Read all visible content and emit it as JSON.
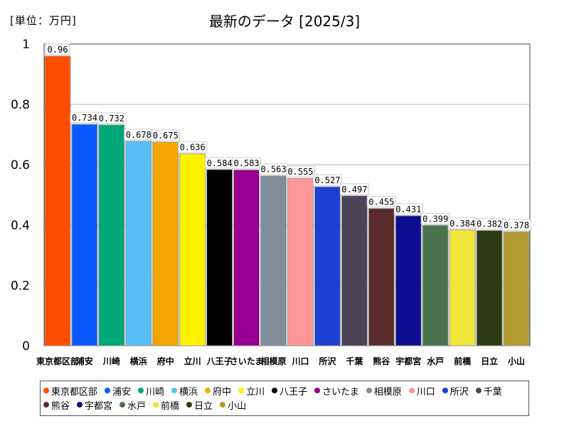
{
  "header": {
    "unit": "[単位：万円]",
    "title": "最新のデータ [2025/3]"
  },
  "chart_data": {
    "type": "bar",
    "title": "最新のデータ [2025/3]",
    "unit_label": "[単位：万円]",
    "ylim": [
      0,
      1
    ],
    "yticks": [
      0,
      0.2,
      0.4,
      0.6,
      0.8,
      1
    ],
    "ytick_labels": [
      "0",
      "0.2",
      "0.4",
      "0.6",
      "0.8",
      "1"
    ],
    "grid": true,
    "legend_position": "bottom",
    "categories": [
      "東京都区部",
      "浦安",
      "川崎",
      "横浜",
      "府中",
      "立川",
      "八王子",
      "さいたま",
      "相模原",
      "川口",
      "所沢",
      "千葉",
      "熊谷",
      "宇都宮",
      "水戸",
      "前橋",
      "日立",
      "小山"
    ],
    "values": [
      0.96,
      0.734,
      0.732,
      0.678,
      0.675,
      0.636,
      0.584,
      0.583,
      0.563,
      0.555,
      0.527,
      0.497,
      0.455,
      0.431,
      0.399,
      0.384,
      0.382,
      0.378
    ],
    "value_labels": [
      "0.96",
      "0.734",
      "0.732",
      "0.678",
      "0.675",
      "0.636",
      "0.584",
      "0.583",
      "0.563",
      "0.555",
      "0.527",
      "0.497",
      "0.455",
      "0.431",
      "0.399",
      "0.384",
      "0.382",
      "0.378"
    ],
    "colors": [
      "#ff4e00",
      "#0a5bff",
      "#00a878",
      "#57bff5",
      "#f5a500",
      "#fff200",
      "#000000",
      "#98008f",
      "#7f8e99",
      "#ff9696",
      "#1b3fd1",
      "#4b4356",
      "#5c2c2c",
      "#0b0e8e",
      "#48734d",
      "#f0e53a",
      "#2e3a12",
      "#b59c32"
    ]
  }
}
